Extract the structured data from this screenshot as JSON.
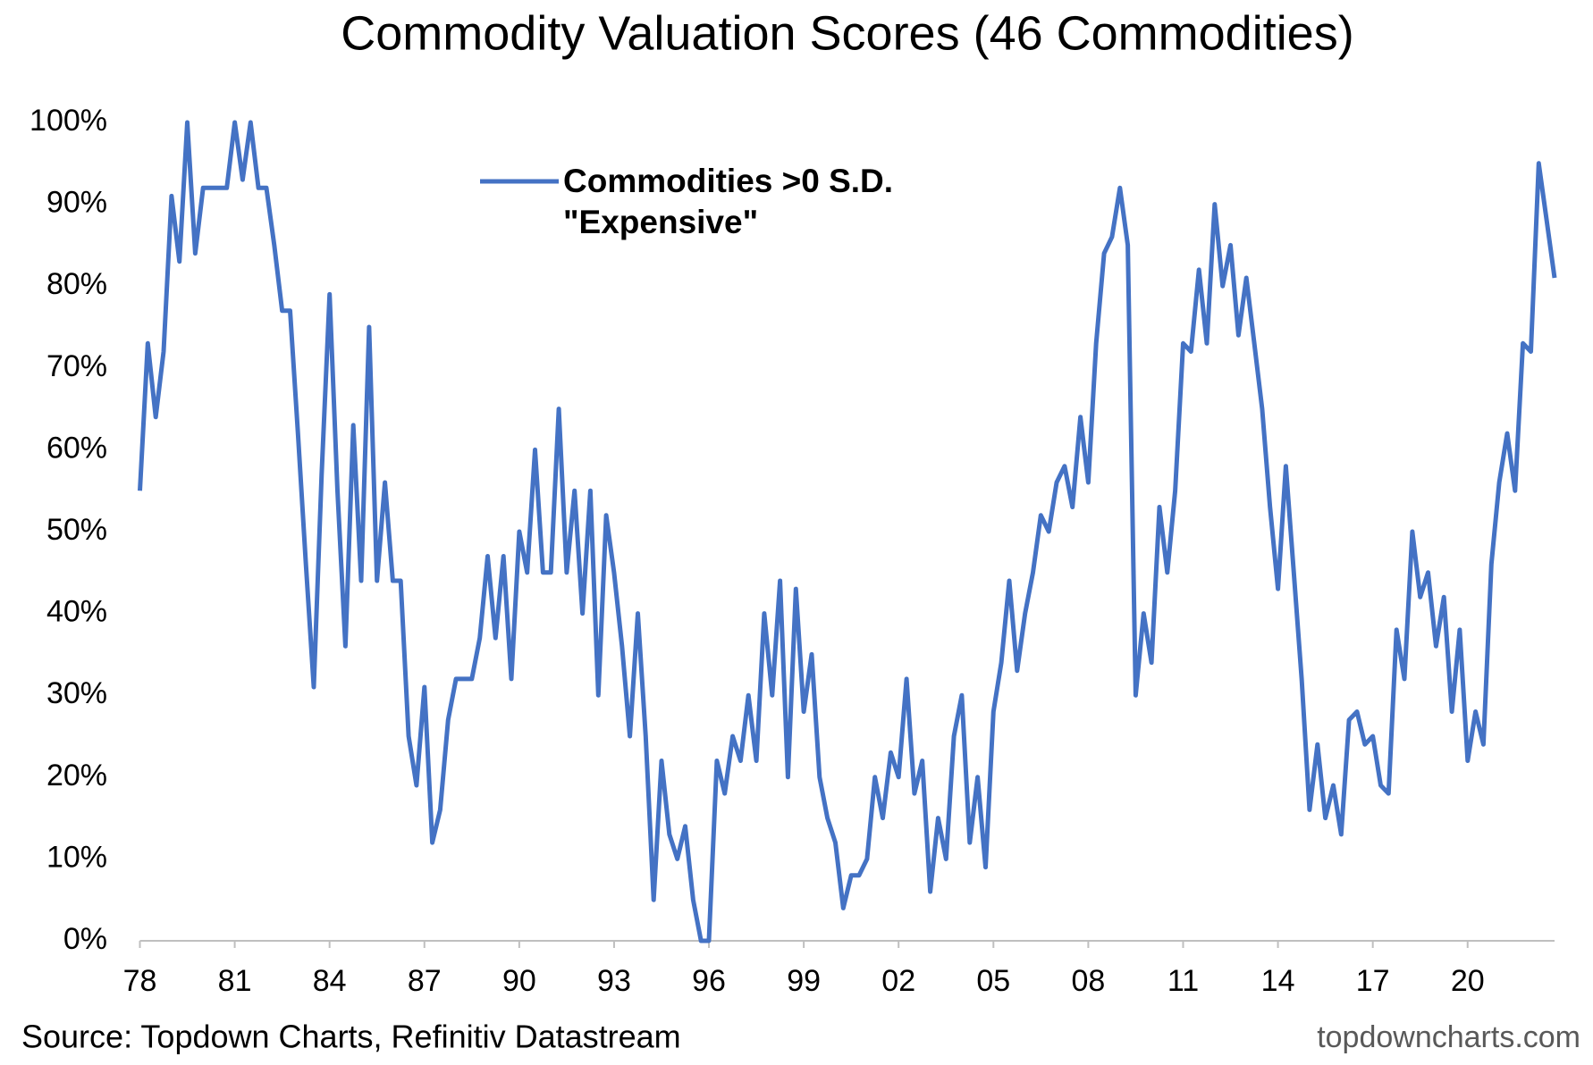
{
  "chart_data": {
    "type": "line",
    "title": "Commodity Valuation Scores (46 Commodities)",
    "source": "Source: Topdown Charts, Refinitiv Datastream",
    "watermark": "topdowncharts.com",
    "x": [
      1978,
      1978.25,
      1978.5,
      1978.75,
      1979,
      1979.25,
      1979.5,
      1979.75,
      1980,
      1980.25,
      1980.5,
      1980.75,
      1981,
      1981.25,
      1981.5,
      1981.75,
      1982,
      1982.25,
      1982.5,
      1982.75,
      1983,
      1983.25,
      1983.5,
      1983.75,
      1984,
      1984.25,
      1984.5,
      1984.75,
      1985,
      1985.25,
      1985.5,
      1985.75,
      1986,
      1986.25,
      1986.5,
      1986.75,
      1987,
      1987.25,
      1987.5,
      1987.75,
      1988,
      1988.25,
      1988.5,
      1988.75,
      1989,
      1989.25,
      1989.5,
      1989.75,
      1990,
      1990.25,
      1990.5,
      1990.75,
      1991,
      1991.25,
      1991.5,
      1991.75,
      1992,
      1992.25,
      1992.5,
      1992.75,
      1993,
      1993.25,
      1993.5,
      1993.75,
      1994,
      1994.25,
      1994.5,
      1994.75,
      1995,
      1995.25,
      1995.5,
      1995.75,
      1996,
      1996.25,
      1996.5,
      1996.75,
      1997,
      1997.25,
      1997.5,
      1997.75,
      1998,
      1998.25,
      1998.5,
      1998.75,
      1999,
      1999.25,
      1999.5,
      1999.75,
      2000,
      2000.25,
      2000.5,
      2000.75,
      2001,
      2001.25,
      2001.5,
      2001.75,
      2002,
      2002.25,
      2002.5,
      2002.75,
      2003,
      2003.25,
      2003.5,
      2003.75,
      2004,
      2004.25,
      2004.5,
      2004.75,
      2005,
      2005.25,
      2005.5,
      2005.75,
      2006,
      2006.25,
      2006.5,
      2006.75,
      2007,
      2007.25,
      2007.5,
      2007.75,
      2008,
      2008.25,
      2008.5,
      2008.75,
      2009,
      2009.25,
      2009.5,
      2009.75,
      2010,
      2010.25,
      2010.5,
      2010.75,
      2011,
      2011.25,
      2011.5,
      2011.75,
      2012,
      2012.25,
      2012.5,
      2012.75,
      2013,
      2013.25,
      2013.5,
      2013.75,
      2014,
      2014.25,
      2014.5,
      2014.75,
      2015,
      2015.25,
      2015.5,
      2015.75,
      2016,
      2016.25,
      2016.5,
      2016.75,
      2017,
      2017.25,
      2017.5,
      2017.75,
      2018,
      2018.25,
      2018.5,
      2018.75,
      2019,
      2019.25,
      2019.5,
      2019.75,
      2020,
      2020.25,
      2020.5,
      2020.75,
      2021,
      2021.25,
      2021.5,
      2021.75,
      2022,
      2022.25,
      2022.5,
      2022.75
    ],
    "series": [
      {
        "name": "Commodities >0 S.D. \"Expensive\"",
        "color": "#4472c4",
        "values": [
          55,
          73,
          64,
          72,
          91,
          83,
          100,
          84,
          92,
          92,
          92,
          92,
          100,
          93,
          100,
          92,
          92,
          85,
          77,
          77,
          62,
          46,
          31,
          57,
          79,
          55,
          36,
          63,
          44,
          75,
          44,
          56,
          44,
          44,
          25,
          19,
          31,
          12,
          16,
          27,
          32,
          32,
          32,
          37,
          47,
          37,
          47,
          32,
          50,
          45,
          60,
          45,
          45,
          65,
          45,
          55,
          40,
          55,
          30,
          52,
          45,
          36,
          25,
          40,
          25,
          5,
          22,
          13,
          10,
          14,
          5,
          0,
          0,
          22,
          18,
          25,
          22,
          30,
          22,
          40,
          30,
          44,
          20,
          43,
          28,
          35,
          20,
          15,
          12,
          4,
          8,
          8,
          10,
          20,
          15,
          23,
          20,
          32,
          18,
          22,
          6,
          15,
          10,
          25,
          30,
          12,
          20,
          9,
          28,
          34,
          44,
          33,
          40,
          45,
          52,
          50,
          56,
          58,
          53,
          64,
          56,
          73,
          84,
          86,
          92,
          85,
          30,
          40,
          34,
          53,
          45,
          55,
          73,
          72,
          82,
          73,
          90,
          80,
          85,
          74,
          81,
          73,
          65,
          53,
          43,
          58,
          45,
          32,
          16,
          24,
          15,
          19,
          13,
          27,
          28,
          24,
          25,
          19,
          18,
          38,
          32,
          50,
          42,
          45,
          36,
          42,
          28,
          38,
          22,
          28,
          24,
          46,
          56,
          62,
          55,
          73,
          72,
          95,
          88,
          81
        ]
      }
    ],
    "xlim": [
      1978,
      2022.75
    ],
    "xticks": [
      {
        "value": 1978,
        "label": "78"
      },
      {
        "value": 1981,
        "label": "81"
      },
      {
        "value": 1984,
        "label": "84"
      },
      {
        "value": 1987,
        "label": "87"
      },
      {
        "value": 1990,
        "label": "90"
      },
      {
        "value": 1993,
        "label": "93"
      },
      {
        "value": 1996,
        "label": "96"
      },
      {
        "value": 1999,
        "label": "99"
      },
      {
        "value": 2002,
        "label": "02"
      },
      {
        "value": 2005,
        "label": "05"
      },
      {
        "value": 2008,
        "label": "08"
      },
      {
        "value": 2011,
        "label": "11"
      },
      {
        "value": 2014,
        "label": "14"
      },
      {
        "value": 2017,
        "label": "17"
      },
      {
        "value": 2020,
        "label": "20"
      }
    ],
    "ylim": [
      0,
      100
    ],
    "yticks": [
      {
        "value": 0,
        "label": "0%"
      },
      {
        "value": 10,
        "label": "10%"
      },
      {
        "value": 20,
        "label": "20%"
      },
      {
        "value": 30,
        "label": "30%"
      },
      {
        "value": 40,
        "label": "40%"
      },
      {
        "value": 50,
        "label": "50%"
      },
      {
        "value": 60,
        "label": "60%"
      },
      {
        "value": 70,
        "label": "70%"
      },
      {
        "value": 80,
        "label": "80%"
      },
      {
        "value": 90,
        "label": "90%"
      },
      {
        "value": 100,
        "label": "100%"
      }
    ]
  }
}
